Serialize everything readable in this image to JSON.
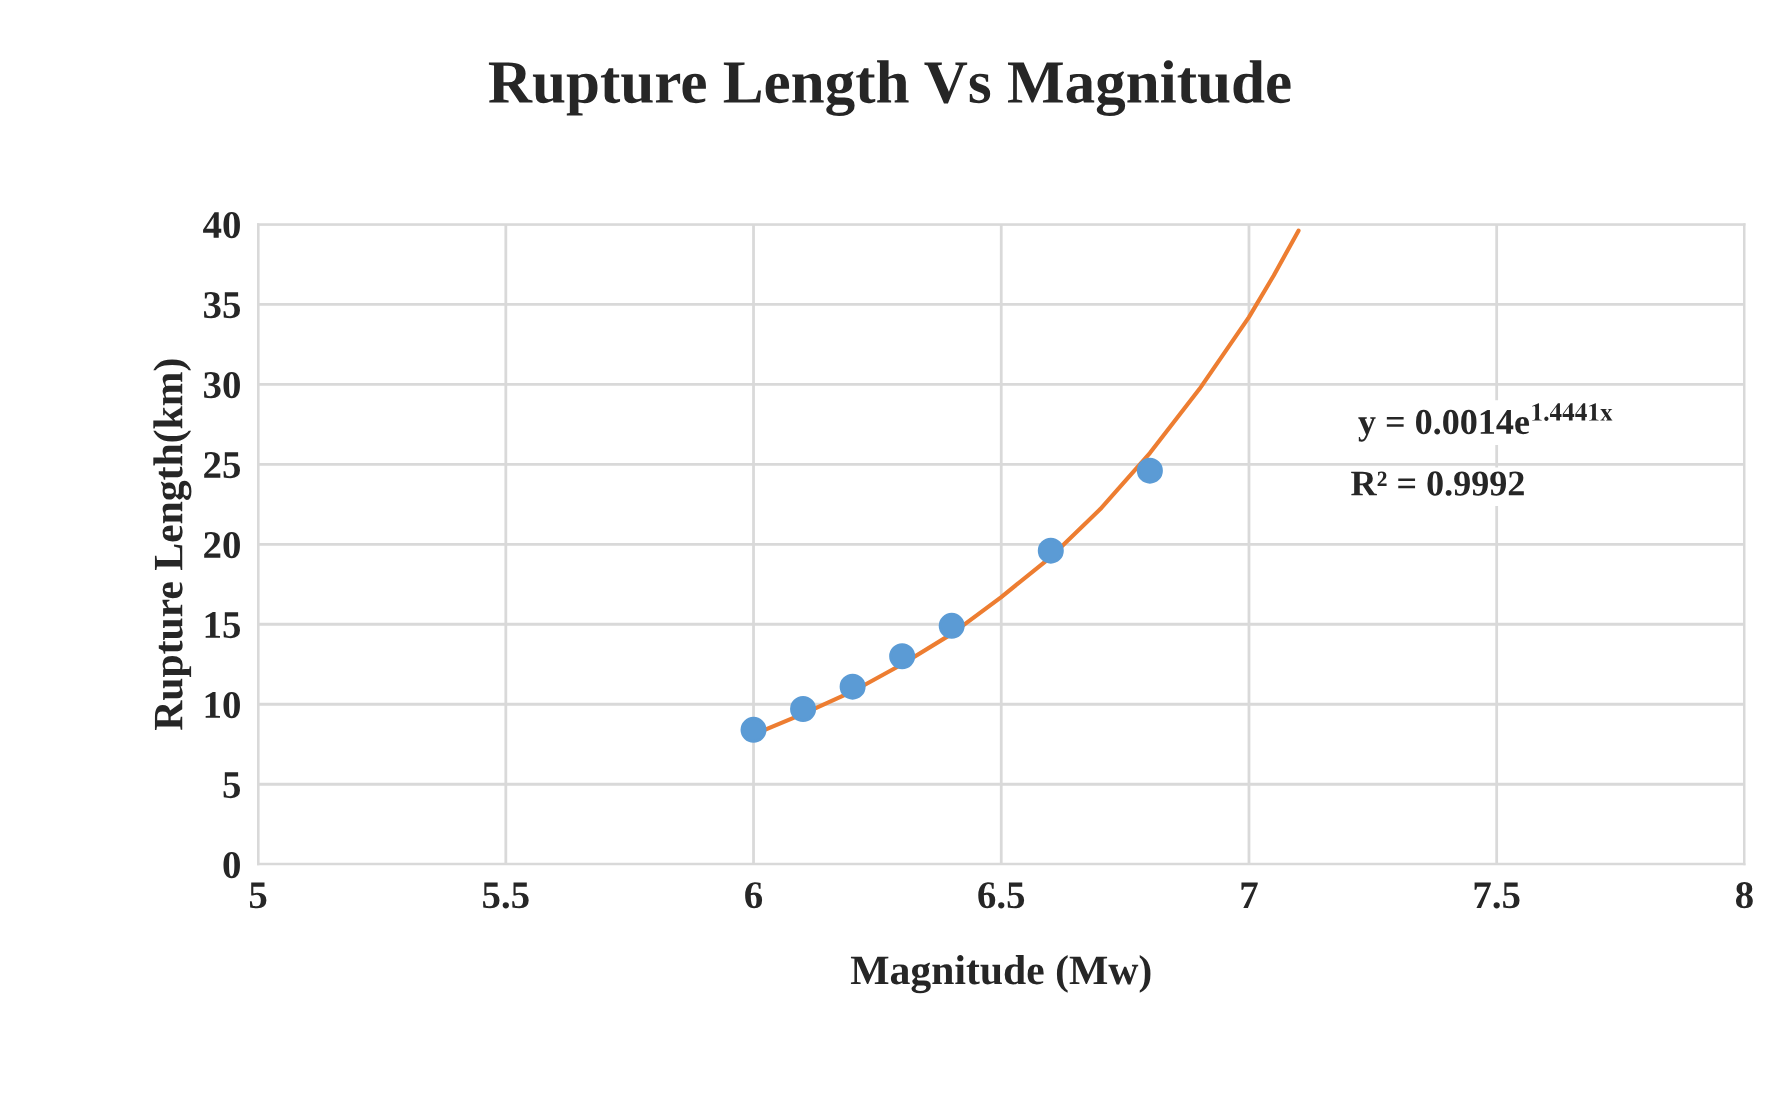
{
  "chart_data": {
    "type": "scatter",
    "title": "Rupture Length Vs Magnitude",
    "xlabel": "Magnitude (Mw)",
    "ylabel": "Rupture Length(km)",
    "x": [
      6,
      6.1,
      6.2,
      6.3,
      6.4,
      6.6,
      6.8
    ],
    "series": [
      {
        "color": "#5b9bd5",
        "values": [
          8.4,
          9.7,
          11.1,
          13.0,
          14.9,
          19.6,
          24.6
        ],
        "marker": "circle"
      },
      {
        "type": "line",
        "color": "#ed7d31",
        "x": [
          6,
          6.1,
          6.2,
          6.3,
          6.4,
          6.5,
          6.6,
          6.7,
          6.8,
          6.9,
          7.0,
          7.05,
          7.1
        ],
        "values": [
          8.1,
          9.4,
          10.8,
          12.5,
          14.4,
          16.7,
          19.2,
          22.2,
          25.7,
          29.7,
          34.2,
          36.8,
          39.6
        ]
      }
    ],
    "annotations": [
      "y = 0.0014e$^{1.4441x}$",
      "R² = 0.9992"
    ],
    "xlim": [
      5,
      8
    ],
    "xticks": [
      5,
      5.5,
      6,
      6.5,
      7,
      7.5,
      8
    ],
    "ylim": [
      0,
      40
    ],
    "yticks": [
      0,
      5,
      10,
      15,
      20,
      25,
      30,
      35,
      40
    ],
    "grid": true
  }
}
